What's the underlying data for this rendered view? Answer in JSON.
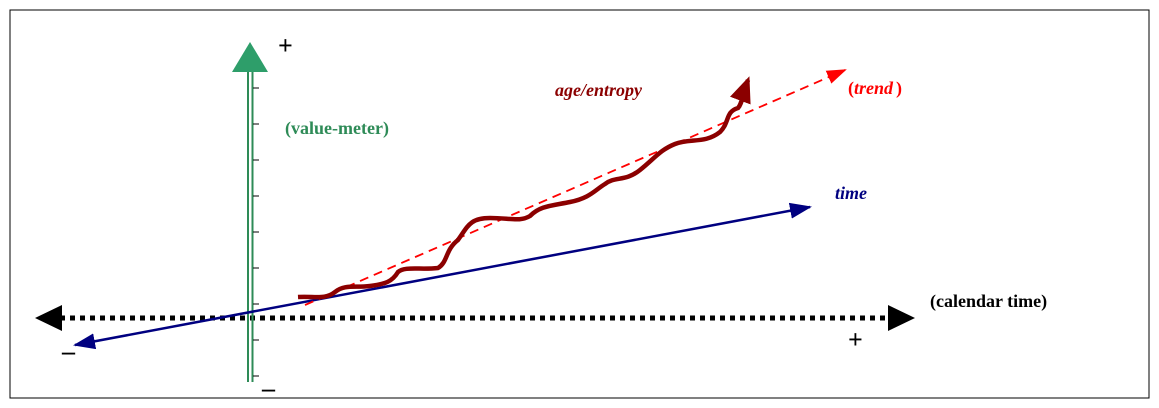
{
  "labels": {
    "plus_top": "+",
    "value_meter": "(value-meter)",
    "age_entropy": "age/entropy",
    "trend": [
      "(",
      "trend",
      ")"
    ],
    "time": "time",
    "calendar_time": "(calendar time)",
    "plus_right": "+",
    "minus_left": "–",
    "minus_bottom": "–"
  }
}
